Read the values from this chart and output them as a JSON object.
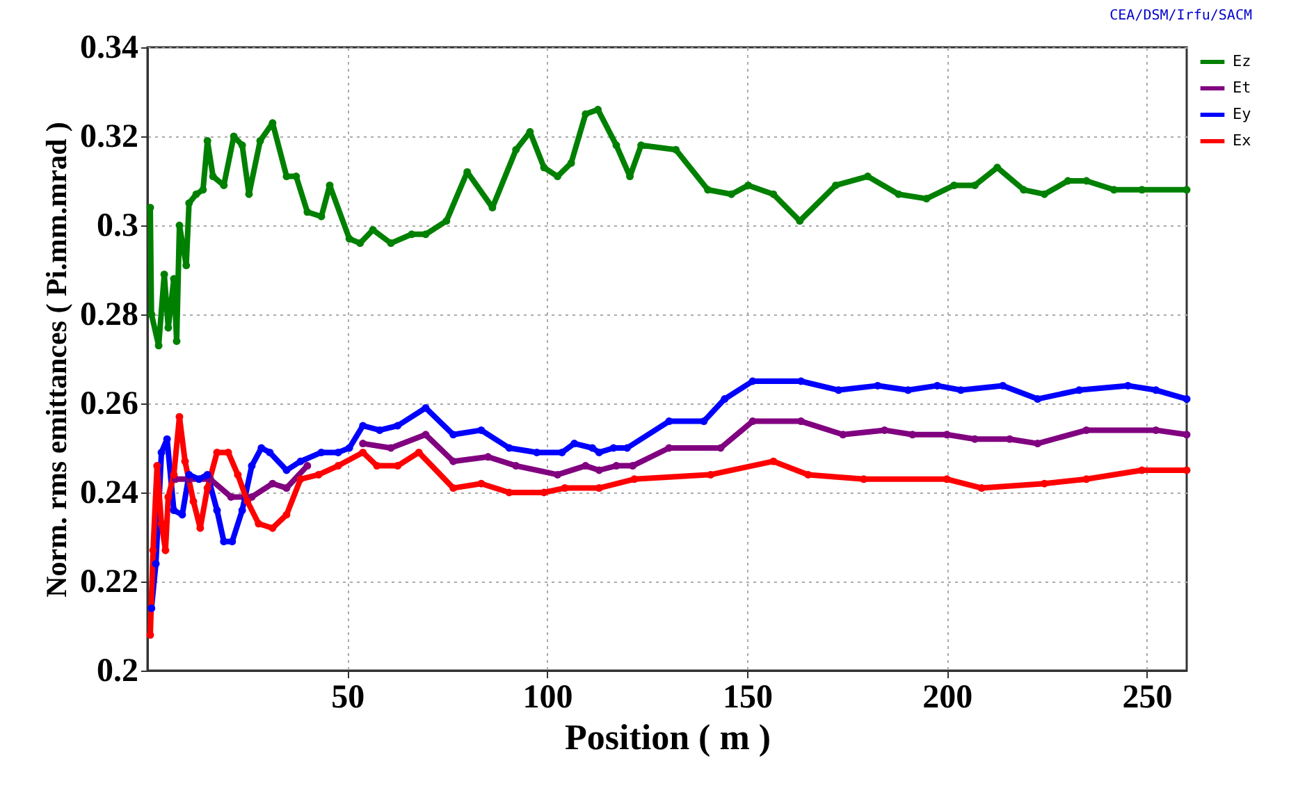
{
  "chart_data": {
    "type": "line",
    "xlabel": "Position ( m )",
    "ylabel": "Norm. rms emittances ( Pi.mm.mrad )",
    "annotations": [
      "CEA/DSM/Irfu/SACM"
    ],
    "xlim": [
      0,
      260
    ],
    "xticks": [
      50,
      100,
      150,
      200,
      250
    ],
    "ylim": [
      0.2,
      0.34
    ],
    "yticks": [
      0.2,
      0.22,
      0.24,
      0.26,
      0.28,
      0.3,
      0.32,
      0.34
    ],
    "grid": true,
    "legend": "right",
    "marker": "circle",
    "line_style": "solid",
    "series": [
      {
        "name": "Ez",
        "color": "#008000",
        "x": [
          0.7,
          1,
          2.8,
          4.2,
          5.2,
          6.6,
          7.3,
          8,
          9.7,
          10.4,
          12.2,
          13.9,
          15,
          16.4,
          19.1,
          21.6,
          23.7,
          25.4,
          28.2,
          31.3,
          34.8,
          37.2,
          40,
          43.5,
          45.6,
          50.5,
          53.2,
          56.4,
          60.9,
          66.1,
          69.6,
          74.8,
          80,
          86.3,
          92.2,
          95.7,
          99.2,
          102.6,
          106,
          109.6,
          112.7,
          117.3,
          120.7,
          123.5,
          132.2,
          140.2,
          146.1,
          150.3,
          156.6,
          163.2,
          172.2,
          180.2,
          187.9,
          194.9,
          201.8,
          207,
          212.6,
          219.2,
          224.4,
          230.3,
          234.9,
          241.8,
          248.8,
          260
        ],
        "values": [
          0.304,
          0.28,
          0.273,
          0.289,
          0.277,
          0.288,
          0.274,
          0.3,
          0.291,
          0.305,
          0.307,
          0.308,
          0.319,
          0.311,
          0.309,
          0.32,
          0.318,
          0.307,
          0.319,
          0.323,
          0.311,
          0.311,
          0.303,
          0.302,
          0.309,
          0.297,
          0.296,
          0.299,
          0.296,
          0.298,
          0.298,
          0.301,
          0.312,
          0.304,
          0.317,
          0.321,
          0.313,
          0.311,
          0.314,
          0.325,
          0.326,
          0.318,
          0.311,
          0.318,
          0.317,
          0.308,
          0.307,
          0.309,
          0.307,
          0.301,
          0.309,
          0.311,
          0.307,
          0.306,
          0.309,
          0.309,
          0.313,
          0.308,
          0.307,
          0.31,
          0.31,
          0.308,
          0.308,
          0.308
        ]
      },
      {
        "name": "Et",
        "color": "#800080",
        "x": [
          7,
          10.4,
          15.7,
          20.9,
          26.1,
          31.3,
          34.8,
          40,
          47,
          53.9,
          60.9,
          69.6,
          76.5,
          85.2,
          92.2,
          102.6,
          109.6,
          113,
          117.3,
          121.4,
          130.5,
          143.4,
          151.4,
          163.5,
          174,
          184.4,
          191.4,
          200,
          207,
          215.7,
          222.7,
          234.9,
          252.3,
          260
        ],
        "values": [
          0.243,
          0.243,
          0.243,
          0.239,
          0.239,
          0.242,
          0.241,
          0.246,
          null,
          0.251,
          0.25,
          0.253,
          0.247,
          0.248,
          0.246,
          0.244,
          0.246,
          0.245,
          0.246,
          0.246,
          0.25,
          0.25,
          0.256,
          0.256,
          0.253,
          0.254,
          0.253,
          0.253,
          0.252,
          0.252,
          0.251,
          0.254,
          0.254,
          0.253
        ]
      },
      {
        "name": "Ey",
        "color": "#0000ff",
        "x": [
          1,
          2.1,
          3.5,
          4.9,
          6.6,
          8.7,
          10.4,
          12.9,
          15,
          17.4,
          19.1,
          21.2,
          23.7,
          26.1,
          28.5,
          30.6,
          34.8,
          38.3,
          43.5,
          47.7,
          50.5,
          53.9,
          58.1,
          62.6,
          69.6,
          76.5,
          83.5,
          90.5,
          97.4,
          103.7,
          106.8,
          111.3,
          113,
          116.6,
          120,
          130.5,
          139.2,
          144.4,
          151.4,
          163.5,
          172.9,
          182.7,
          190.3,
          197.6,
          203.5,
          214,
          222.7,
          233.1,
          245.3,
          252.3,
          260
        ],
        "values": [
          0.214,
          0.224,
          0.249,
          0.252,
          0.236,
          0.235,
          0.244,
          0.243,
          0.244,
          0.236,
          0.229,
          0.229,
          0.236,
          0.246,
          0.25,
          0.249,
          0.245,
          0.247,
          0.249,
          0.249,
          0.25,
          0.255,
          0.254,
          0.255,
          0.259,
          0.253,
          0.254,
          0.25,
          0.249,
          0.249,
          0.251,
          0.25,
          0.249,
          0.25,
          0.25,
          0.256,
          0.256,
          0.261,
          0.265,
          0.265,
          0.263,
          0.264,
          0.263,
          0.264,
          0.263,
          0.264,
          0.261,
          0.263,
          0.264,
          0.263,
          0.261
        ]
      },
      {
        "name": "Ex",
        "color": "#ff0000",
        "x": [
          0.7,
          1.4,
          2.4,
          3.5,
          4.5,
          5.2,
          6.6,
          8,
          9.4,
          11.5,
          13.2,
          15,
          17.4,
          20.2,
          22.6,
          25,
          27.8,
          31.3,
          34.8,
          38.3,
          42.8,
          47.7,
          53.9,
          57.4,
          62.6,
          67.9,
          76.5,
          83.5,
          90.5,
          99.2,
          104.4,
          113,
          121.8,
          140.9,
          156.6,
          165.3,
          179.2,
          200,
          208.7,
          224.4,
          234.9,
          248.8,
          260
        ],
        "values": [
          0.208,
          0.227,
          0.246,
          0.233,
          0.227,
          0.239,
          0.244,
          0.257,
          0.247,
          0.238,
          0.232,
          0.241,
          0.249,
          0.249,
          0.244,
          0.238,
          0.233,
          0.232,
          0.235,
          0.243,
          0.244,
          0.246,
          0.249,
          0.246,
          0.246,
          0.249,
          0.241,
          0.242,
          0.24,
          0.24,
          0.241,
          0.241,
          0.243,
          0.244,
          0.247,
          0.244,
          0.243,
          0.243,
          0.241,
          0.242,
          0.243,
          0.245,
          0.245
        ]
      }
    ]
  }
}
